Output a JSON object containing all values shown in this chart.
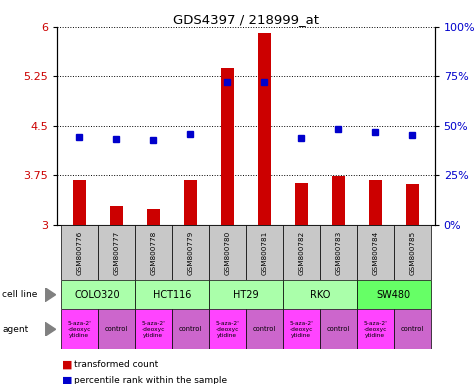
{
  "title": "GDS4397 / 218999_at",
  "samples": [
    "GSM800776",
    "GSM800777",
    "GSM800778",
    "GSM800779",
    "GSM800780",
    "GSM800781",
    "GSM800782",
    "GSM800783",
    "GSM800784",
    "GSM800785"
  ],
  "bar_values": [
    3.68,
    3.28,
    3.24,
    3.68,
    5.37,
    5.91,
    3.63,
    3.74,
    3.68,
    3.62
  ],
  "percentile_values": [
    44.5,
    43.5,
    43.0,
    46.0,
    72.0,
    72.0,
    44.0,
    48.5,
    47.0,
    45.5
  ],
  "ylim_left": [
    3.0,
    6.0
  ],
  "ylim_right": [
    0,
    100
  ],
  "yticks_left": [
    3.0,
    3.75,
    4.5,
    5.25,
    6.0
  ],
  "yticks_right": [
    0,
    25,
    50,
    75,
    100
  ],
  "ytick_labels_left": [
    "3",
    "3.75",
    "4.5",
    "5.25",
    "6"
  ],
  "ytick_labels_right": [
    "0%",
    "25%",
    "50%",
    "75%",
    "100%"
  ],
  "bar_color": "#cc0000",
  "percentile_color": "#0000cc",
  "bar_baseline": 3.0,
  "cell_lines": [
    "COLO320",
    "HCT116",
    "HT29",
    "RKO",
    "SW480"
  ],
  "cell_line_spans": [
    [
      0,
      1
    ],
    [
      2,
      3
    ],
    [
      4,
      5
    ],
    [
      6,
      7
    ],
    [
      8,
      9
    ]
  ],
  "cell_line_color": "#aaffaa",
  "cell_line_color_bright": "#66ff66",
  "agent_drug": "5-aza-2'\n-deoxyc\nytidine",
  "agent_control": "control",
  "agent_drug_color": "#ff44ff",
  "agent_control_color": "#cc66cc",
  "grid_color": "#000000",
  "legend_bar_label": "transformed count",
  "legend_pct_label": "percentile rank within the sample",
  "sample_bg_color": "#c8c8c8",
  "cell_line_label": "cell line",
  "agent_label": "agent",
  "bar_width": 0.35
}
